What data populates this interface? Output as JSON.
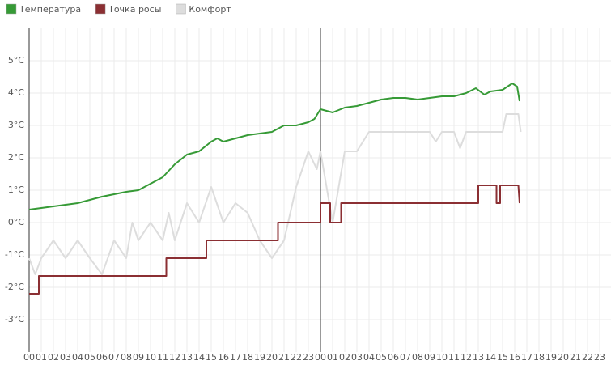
{
  "chart_data": {
    "type": "line",
    "xlim": [
      0,
      48
    ],
    "ylim": [
      -4,
      6
    ],
    "grid": true,
    "legend": "top-left",
    "yticks": [
      {
        "value": -3,
        "label": "-3°C"
      },
      {
        "value": -2,
        "label": "-2°C"
      },
      {
        "value": -1,
        "label": "-1°C"
      },
      {
        "value": 0,
        "label": "0°C"
      },
      {
        "value": 1,
        "label": "1°C"
      },
      {
        "value": 2,
        "label": "2°C"
      },
      {
        "value": 3,
        "label": "3°C"
      },
      {
        "value": 4,
        "label": "4°C"
      },
      {
        "value": 5,
        "label": "5°C"
      }
    ],
    "xticks": [
      {
        "value": 0,
        "label": "00"
      },
      {
        "value": 1,
        "label": "01"
      },
      {
        "value": 2,
        "label": "02"
      },
      {
        "value": 3,
        "label": "03"
      },
      {
        "value": 4,
        "label": "04"
      },
      {
        "value": 5,
        "label": "05"
      },
      {
        "value": 6,
        "label": "06"
      },
      {
        "value": 7,
        "label": "07"
      },
      {
        "value": 8,
        "label": "08"
      },
      {
        "value": 9,
        "label": "09"
      },
      {
        "value": 10,
        "label": "10"
      },
      {
        "value": 11,
        "label": "11"
      },
      {
        "value": 12,
        "label": "12"
      },
      {
        "value": 13,
        "label": "13"
      },
      {
        "value": 14,
        "label": "14"
      },
      {
        "value": 15,
        "label": "15"
      },
      {
        "value": 16,
        "label": "16"
      },
      {
        "value": 17,
        "label": "17"
      },
      {
        "value": 18,
        "label": "18"
      },
      {
        "value": 19,
        "label": "19"
      },
      {
        "value": 20,
        "label": "20"
      },
      {
        "value": 21,
        "label": "21"
      },
      {
        "value": 22,
        "label": "22"
      },
      {
        "value": 23,
        "label": "23"
      },
      {
        "value": 24,
        "label": "00"
      },
      {
        "value": 25,
        "label": "01"
      },
      {
        "value": 26,
        "label": "02"
      },
      {
        "value": 27,
        "label": "03"
      },
      {
        "value": 28,
        "label": "04"
      },
      {
        "value": 29,
        "label": "05"
      },
      {
        "value": 30,
        "label": "06"
      },
      {
        "value": 31,
        "label": "07"
      },
      {
        "value": 32,
        "label": "08"
      },
      {
        "value": 33,
        "label": "09"
      },
      {
        "value": 34,
        "label": "10"
      },
      {
        "value": 35,
        "label": "11"
      },
      {
        "value": 36,
        "label": "12"
      },
      {
        "value": 37,
        "label": "13"
      },
      {
        "value": 38,
        "label": "14"
      },
      {
        "value": 39,
        "label": "15"
      },
      {
        "value": 40,
        "label": "16"
      },
      {
        "value": 41,
        "label": "17"
      },
      {
        "value": 42,
        "label": "18"
      },
      {
        "value": 43,
        "label": "19"
      },
      {
        "value": 44,
        "label": "20"
      },
      {
        "value": 45,
        "label": "21"
      },
      {
        "value": 46,
        "label": "22"
      },
      {
        "value": 47,
        "label": "23"
      }
    ],
    "series": [
      {
        "name": "Температура",
        "color": "#369a36",
        "x": [
          0,
          2,
          4,
          6,
          8,
          9,
          10,
          11,
          12,
          13,
          14,
          15,
          15.5,
          16,
          17,
          18,
          19,
          20,
          21,
          22,
          23,
          23.5,
          24,
          25,
          26,
          27,
          28,
          29,
          30,
          31,
          32,
          33,
          34,
          35,
          36,
          36.8,
          37.5,
          38,
          39,
          39.8,
          40.2,
          40.4
        ],
        "values": [
          0.4,
          0.5,
          0.6,
          0.8,
          0.95,
          1.0,
          1.2,
          1.4,
          1.8,
          2.1,
          2.2,
          2.5,
          2.6,
          2.5,
          2.6,
          2.7,
          2.75,
          2.8,
          3.0,
          3.0,
          3.1,
          3.2,
          3.5,
          3.4,
          3.55,
          3.6,
          3.7,
          3.8,
          3.85,
          3.85,
          3.8,
          3.85,
          3.9,
          3.9,
          4.0,
          4.15,
          3.95,
          4.05,
          4.1,
          4.3,
          4.2,
          3.75
        ]
      },
      {
        "name": "Точка росы",
        "color": "#8b2f33",
        "x": [
          0,
          0.8,
          0.8,
          11.3,
          11.3,
          14.6,
          14.6,
          20.5,
          20.5,
          24,
          24,
          24.8,
          24.8,
          25.7,
          25.7,
          37.0,
          37.0,
          38.5,
          38.5,
          38.8,
          38.8,
          40.3,
          40.4
        ],
        "values": [
          -2.2,
          -2.2,
          -1.65,
          -1.65,
          -1.1,
          -1.1,
          -0.55,
          -0.55,
          0.0,
          0.0,
          0.6,
          0.6,
          0.0,
          0.0,
          0.6,
          0.6,
          1.15,
          1.15,
          0.6,
          0.6,
          1.15,
          1.15,
          0.6
        ]
      },
      {
        "name": "Комфорт",
        "color": "#dddddd",
        "x": [
          0,
          0.5,
          1,
          2,
          3,
          4,
          5,
          6,
          7,
          8,
          8.5,
          9,
          10,
          11,
          11.5,
          12,
          13,
          14,
          15,
          16,
          17,
          18,
          19,
          20,
          21,
          22,
          23,
          23.7,
          24,
          25,
          26,
          27,
          28,
          29,
          30,
          33,
          33.5,
          34,
          35,
          35.5,
          36,
          37,
          38,
          39,
          39.3,
          40.3,
          40.5
        ],
        "values": [
          -1.1,
          -1.6,
          -1.1,
          -0.55,
          -1.1,
          -0.55,
          -1.1,
          -1.6,
          -0.55,
          -1.1,
          0.0,
          -0.55,
          0.0,
          -0.55,
          0.3,
          -0.55,
          0.6,
          0.0,
          1.1,
          0.0,
          0.6,
          0.3,
          -0.55,
          -1.1,
          -0.55,
          1.1,
          2.2,
          1.65,
          2.2,
          0.0,
          2.2,
          2.2,
          2.8,
          2.8,
          2.8,
          2.8,
          2.5,
          2.8,
          2.8,
          2.3,
          2.8,
          2.8,
          2.8,
          2.8,
          3.35,
          3.35,
          2.8
        ]
      }
    ]
  }
}
